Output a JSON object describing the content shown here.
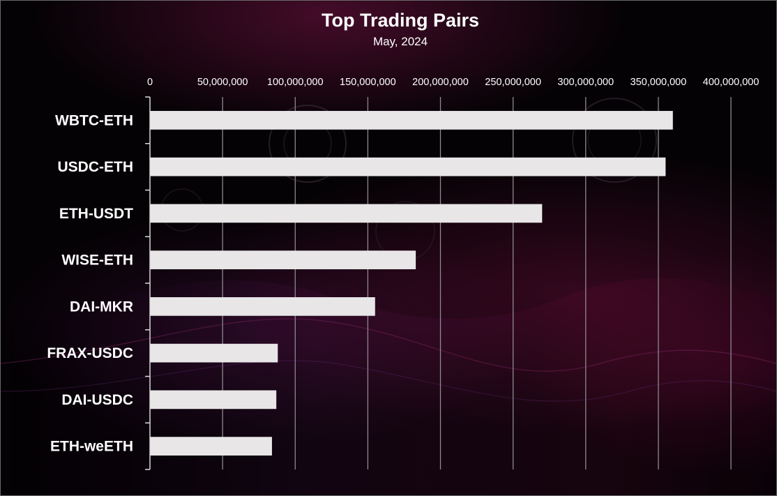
{
  "chart_data": {
    "type": "bar",
    "orientation": "horizontal",
    "title": "Top Trading Pairs",
    "subtitle": "May, 2024",
    "categories": [
      "WBTC-ETH",
      "USDC-ETH",
      "ETH-USDT",
      "WISE-ETH",
      "DAI-MKR",
      "FRAX-USDC",
      "DAI-USDC",
      "ETH-weETH"
    ],
    "values": [
      360000000,
      355000000,
      270000000,
      183000000,
      155000000,
      88000000,
      87000000,
      84000000
    ],
    "xlim": [
      0,
      400000000
    ],
    "xticks": [
      0,
      50000000,
      100000000,
      150000000,
      200000000,
      250000000,
      300000000,
      350000000,
      400000000
    ],
    "xtick_labels": [
      "0",
      "50,000,000",
      "100,000,000",
      "150,000,000",
      "200,000,000",
      "250,000,000",
      "300,000,000",
      "350,000,000",
      "400,000,000"
    ],
    "xaxis_position": "top",
    "grid": "vertical",
    "legend": "none",
    "bar_color": "#e8e6e7",
    "grid_color": "#8e8a8c",
    "axis_color": "#d9d9d9",
    "text_color": "#ffffff"
  }
}
